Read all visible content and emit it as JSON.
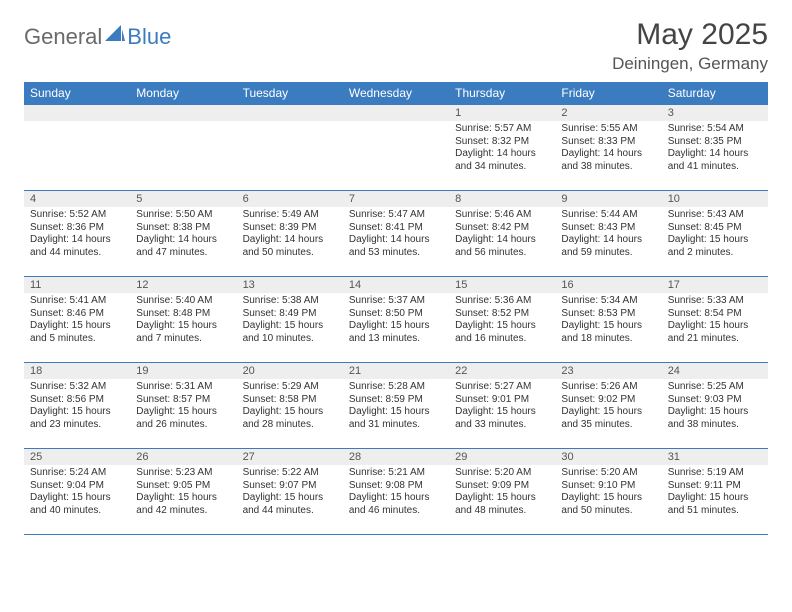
{
  "logo": {
    "general": "General",
    "blue": "Blue"
  },
  "title": "May 2025",
  "location": "Deiningen, Germany",
  "weekdays": [
    "Sunday",
    "Monday",
    "Tuesday",
    "Wednesday",
    "Thursday",
    "Friday",
    "Saturday"
  ],
  "colors": {
    "header_bg": "#3b7bbf",
    "header_text": "#ffffff",
    "daynum_bg": "#eeeeee",
    "border": "#3b7bbf",
    "body_bg": "#ffffff",
    "text": "#333333"
  },
  "typography": {
    "title_fontsize": 30,
    "location_fontsize": 17,
    "weekday_fontsize": 12,
    "daynum_fontsize": 11,
    "cell_fontsize": 10
  },
  "layout": {
    "columns": 7,
    "rows": 5,
    "leading_blanks": 4
  },
  "days": [
    {
      "n": 1,
      "sunrise": "5:57 AM",
      "sunset": "8:32 PM",
      "daylight": "14 hours and 34 minutes."
    },
    {
      "n": 2,
      "sunrise": "5:55 AM",
      "sunset": "8:33 PM",
      "daylight": "14 hours and 38 minutes."
    },
    {
      "n": 3,
      "sunrise": "5:54 AM",
      "sunset": "8:35 PM",
      "daylight": "14 hours and 41 minutes."
    },
    {
      "n": 4,
      "sunrise": "5:52 AM",
      "sunset": "8:36 PM",
      "daylight": "14 hours and 44 minutes."
    },
    {
      "n": 5,
      "sunrise": "5:50 AM",
      "sunset": "8:38 PM",
      "daylight": "14 hours and 47 minutes."
    },
    {
      "n": 6,
      "sunrise": "5:49 AM",
      "sunset": "8:39 PM",
      "daylight": "14 hours and 50 minutes."
    },
    {
      "n": 7,
      "sunrise": "5:47 AM",
      "sunset": "8:41 PM",
      "daylight": "14 hours and 53 minutes."
    },
    {
      "n": 8,
      "sunrise": "5:46 AM",
      "sunset": "8:42 PM",
      "daylight": "14 hours and 56 minutes."
    },
    {
      "n": 9,
      "sunrise": "5:44 AM",
      "sunset": "8:43 PM",
      "daylight": "14 hours and 59 minutes."
    },
    {
      "n": 10,
      "sunrise": "5:43 AM",
      "sunset": "8:45 PM",
      "daylight": "15 hours and 2 minutes."
    },
    {
      "n": 11,
      "sunrise": "5:41 AM",
      "sunset": "8:46 PM",
      "daylight": "15 hours and 5 minutes."
    },
    {
      "n": 12,
      "sunrise": "5:40 AM",
      "sunset": "8:48 PM",
      "daylight": "15 hours and 7 minutes."
    },
    {
      "n": 13,
      "sunrise": "5:38 AM",
      "sunset": "8:49 PM",
      "daylight": "15 hours and 10 minutes."
    },
    {
      "n": 14,
      "sunrise": "5:37 AM",
      "sunset": "8:50 PM",
      "daylight": "15 hours and 13 minutes."
    },
    {
      "n": 15,
      "sunrise": "5:36 AM",
      "sunset": "8:52 PM",
      "daylight": "15 hours and 16 minutes."
    },
    {
      "n": 16,
      "sunrise": "5:34 AM",
      "sunset": "8:53 PM",
      "daylight": "15 hours and 18 minutes."
    },
    {
      "n": 17,
      "sunrise": "5:33 AM",
      "sunset": "8:54 PM",
      "daylight": "15 hours and 21 minutes."
    },
    {
      "n": 18,
      "sunrise": "5:32 AM",
      "sunset": "8:56 PM",
      "daylight": "15 hours and 23 minutes."
    },
    {
      "n": 19,
      "sunrise": "5:31 AM",
      "sunset": "8:57 PM",
      "daylight": "15 hours and 26 minutes."
    },
    {
      "n": 20,
      "sunrise": "5:29 AM",
      "sunset": "8:58 PM",
      "daylight": "15 hours and 28 minutes."
    },
    {
      "n": 21,
      "sunrise": "5:28 AM",
      "sunset": "8:59 PM",
      "daylight": "15 hours and 31 minutes."
    },
    {
      "n": 22,
      "sunrise": "5:27 AM",
      "sunset": "9:01 PM",
      "daylight": "15 hours and 33 minutes."
    },
    {
      "n": 23,
      "sunrise": "5:26 AM",
      "sunset": "9:02 PM",
      "daylight": "15 hours and 35 minutes."
    },
    {
      "n": 24,
      "sunrise": "5:25 AM",
      "sunset": "9:03 PM",
      "daylight": "15 hours and 38 minutes."
    },
    {
      "n": 25,
      "sunrise": "5:24 AM",
      "sunset": "9:04 PM",
      "daylight": "15 hours and 40 minutes."
    },
    {
      "n": 26,
      "sunrise": "5:23 AM",
      "sunset": "9:05 PM",
      "daylight": "15 hours and 42 minutes."
    },
    {
      "n": 27,
      "sunrise": "5:22 AM",
      "sunset": "9:07 PM",
      "daylight": "15 hours and 44 minutes."
    },
    {
      "n": 28,
      "sunrise": "5:21 AM",
      "sunset": "9:08 PM",
      "daylight": "15 hours and 46 minutes."
    },
    {
      "n": 29,
      "sunrise": "5:20 AM",
      "sunset": "9:09 PM",
      "daylight": "15 hours and 48 minutes."
    },
    {
      "n": 30,
      "sunrise": "5:20 AM",
      "sunset": "9:10 PM",
      "daylight": "15 hours and 50 minutes."
    },
    {
      "n": 31,
      "sunrise": "5:19 AM",
      "sunset": "9:11 PM",
      "daylight": "15 hours and 51 minutes."
    }
  ],
  "labels": {
    "sunrise": "Sunrise: ",
    "sunset": "Sunset: ",
    "daylight": "Daylight: "
  }
}
